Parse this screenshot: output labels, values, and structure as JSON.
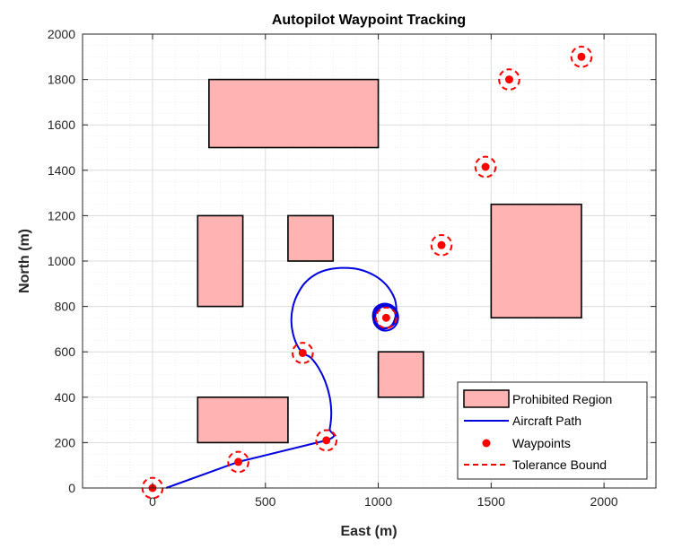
{
  "chart_data": {
    "type": "line",
    "title": "Autopilot Waypoint Tracking",
    "xlabel": "East (m)",
    "ylabel": "North (m)",
    "xlim": [
      -310,
      2230
    ],
    "ylim": [
      0,
      2000
    ],
    "xticks": [
      0,
      500,
      1000,
      1500,
      2000
    ],
    "yticks": [
      0,
      200,
      400,
      600,
      800,
      1000,
      1200,
      1400,
      1600,
      1800,
      2000
    ],
    "grid": true,
    "legend_position": "bottom-right",
    "legend": [
      {
        "label": "Prohibited Region",
        "kind": "patch"
      },
      {
        "label": "Aircraft Path",
        "kind": "line"
      },
      {
        "label": "Waypoints",
        "kind": "marker"
      },
      {
        "label": "Tolerance Bound",
        "kind": "dashed"
      }
    ],
    "prohibited_regions": [
      {
        "x0": 250,
        "x1": 1000,
        "y0": 1500,
        "y1": 1800
      },
      {
        "x0": 200,
        "x1": 400,
        "y0": 800,
        "y1": 1200
      },
      {
        "x0": 600,
        "x1": 800,
        "y0": 1000,
        "y1": 1200
      },
      {
        "x0": 1500,
        "x1": 1900,
        "y0": 750,
        "y1": 1250
      },
      {
        "x0": 1000,
        "x1": 1200,
        "y0": 400,
        "y1": 600
      },
      {
        "x0": 200,
        "x1": 600,
        "y0": 200,
        "y1": 400
      }
    ],
    "waypoints": [
      {
        "x": 0,
        "y": 0
      },
      {
        "x": 380,
        "y": 115
      },
      {
        "x": 770,
        "y": 210
      },
      {
        "x": 665,
        "y": 595
      },
      {
        "x": 1035,
        "y": 750
      },
      {
        "x": 1280,
        "y": 1070
      },
      {
        "x": 1475,
        "y": 1415
      },
      {
        "x": 1580,
        "y": 1800
      },
      {
        "x": 1900,
        "y": 1900
      }
    ],
    "tolerance_radius": 45,
    "aircraft_path": [
      [
        60,
        0
      ],
      [
        380,
        115
      ],
      [
        770,
        210
      ],
      [
        785,
        260
      ],
      [
        792,
        330
      ],
      [
        785,
        400
      ],
      [
        765,
        470
      ],
      [
        735,
        530
      ],
      [
        700,
        575
      ],
      [
        665,
        595
      ],
      [
        640,
        630
      ],
      [
        622,
        680
      ],
      [
        615,
        735
      ],
      [
        620,
        790
      ],
      [
        638,
        845
      ],
      [
        672,
        900
      ],
      [
        720,
        940
      ],
      [
        780,
        963
      ],
      [
        850,
        970
      ],
      [
        920,
        962
      ],
      [
        985,
        935
      ],
      [
        1035,
        895
      ],
      [
        1070,
        840
      ],
      [
        1080,
        790
      ],
      [
        1075,
        750
      ],
      [
        1060,
        718
      ],
      [
        1030,
        702
      ],
      [
        1000,
        712
      ],
      [
        978,
        745
      ],
      [
        982,
        785
      ],
      [
        1008,
        808
      ],
      [
        1045,
        810
      ],
      [
        1075,
        790
      ],
      [
        1088,
        755
      ],
      [
        1078,
        718
      ],
      [
        1048,
        696
      ],
      [
        1010,
        698
      ],
      [
        983,
        725
      ],
      [
        980,
        765
      ],
      [
        1000,
        795
      ],
      [
        1035,
        805
      ],
      [
        1068,
        790
      ],
      [
        1082,
        758
      ],
      [
        1072,
        725
      ],
      [
        1042,
        706
      ],
      [
        1008,
        710
      ],
      [
        988,
        738
      ],
      [
        990,
        772
      ],
      [
        1012,
        796
      ],
      [
        1045,
        800
      ],
      [
        1070,
        782
      ],
      [
        1078,
        752
      ]
    ]
  }
}
